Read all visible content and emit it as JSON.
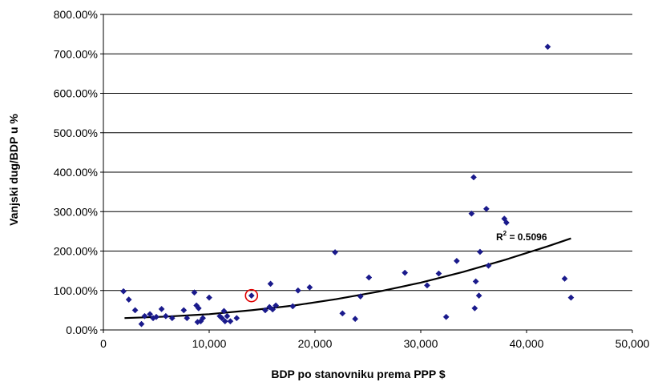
{
  "chart_data": {
    "type": "scatter",
    "xlabel": "BDP po stanovniku prema PPP $",
    "ylabel": "Vanjski dug/BDP u %",
    "xlim": [
      0,
      50000
    ],
    "ylim": [
      0,
      800
    ],
    "x_ticks": [
      0,
      10000,
      20000,
      30000,
      40000,
      50000
    ],
    "x_tick_labels": [
      "0",
      "10,000",
      "20,000",
      "30,000",
      "40,000",
      "50,000"
    ],
    "y_ticks": [
      0,
      100,
      200,
      300,
      400,
      500,
      600,
      700,
      800
    ],
    "y_tick_labels": [
      "0.00%",
      "100.00%",
      "200.00%",
      "300.00%",
      "400.00%",
      "500.00%",
      "600.00%",
      "700.00%",
      "800.00%"
    ],
    "grid": "horizontal",
    "marker_color": "#1a1a8c",
    "trendline_color": "#000000",
    "highlight_color": "#e00000",
    "annotation": {
      "r2_prefix": "R",
      "r2_sup": "2",
      "r2_value": " = 0.5096"
    },
    "highlighted_point": {
      "x": 14000,
      "y": 87
    },
    "trendline": [
      {
        "x": 2000,
        "y": 30
      },
      {
        "x": 6000,
        "y": 34
      },
      {
        "x": 10000,
        "y": 40
      },
      {
        "x": 14000,
        "y": 50
      },
      {
        "x": 18000,
        "y": 62
      },
      {
        "x": 22000,
        "y": 78
      },
      {
        "x": 26000,
        "y": 97
      },
      {
        "x": 30000,
        "y": 120
      },
      {
        "x": 34000,
        "y": 147
      },
      {
        "x": 38000,
        "y": 178
      },
      {
        "x": 42000,
        "y": 212
      },
      {
        "x": 44200,
        "y": 232
      }
    ],
    "points": [
      {
        "x": 1900,
        "y": 98
      },
      {
        "x": 2400,
        "y": 77
      },
      {
        "x": 3000,
        "y": 50
      },
      {
        "x": 3600,
        "y": 15
      },
      {
        "x": 3900,
        "y": 35
      },
      {
        "x": 4400,
        "y": 40
      },
      {
        "x": 4700,
        "y": 30
      },
      {
        "x": 5000,
        "y": 33
      },
      {
        "x": 5500,
        "y": 53
      },
      {
        "x": 5900,
        "y": 35
      },
      {
        "x": 6500,
        "y": 30
      },
      {
        "x": 7600,
        "y": 50
      },
      {
        "x": 7900,
        "y": 30
      },
      {
        "x": 8600,
        "y": 95
      },
      {
        "x": 8800,
        "y": 62
      },
      {
        "x": 8900,
        "y": 20
      },
      {
        "x": 9000,
        "y": 55
      },
      {
        "x": 9200,
        "y": 22
      },
      {
        "x": 9400,
        "y": 30
      },
      {
        "x": 10000,
        "y": 82
      },
      {
        "x": 11000,
        "y": 35
      },
      {
        "x": 11200,
        "y": 30
      },
      {
        "x": 11400,
        "y": 48
      },
      {
        "x": 11500,
        "y": 22
      },
      {
        "x": 11700,
        "y": 35
      },
      {
        "x": 12000,
        "y": 22
      },
      {
        "x": 12600,
        "y": 30
      },
      {
        "x": 14000,
        "y": 87
      },
      {
        "x": 15300,
        "y": 50
      },
      {
        "x": 15700,
        "y": 58
      },
      {
        "x": 15800,
        "y": 117
      },
      {
        "x": 16000,
        "y": 52
      },
      {
        "x": 16300,
        "y": 62
      },
      {
        "x": 17900,
        "y": 60
      },
      {
        "x": 18400,
        "y": 100
      },
      {
        "x": 19500,
        "y": 108
      },
      {
        "x": 21900,
        "y": 197
      },
      {
        "x": 22600,
        "y": 42
      },
      {
        "x": 23800,
        "y": 28
      },
      {
        "x": 24300,
        "y": 85
      },
      {
        "x": 25100,
        "y": 133
      },
      {
        "x": 28500,
        "y": 145
      },
      {
        "x": 30600,
        "y": 113
      },
      {
        "x": 31700,
        "y": 143
      },
      {
        "x": 32400,
        "y": 33
      },
      {
        "x": 33400,
        "y": 175
      },
      {
        "x": 34800,
        "y": 295
      },
      {
        "x": 35000,
        "y": 387
      },
      {
        "x": 35100,
        "y": 55
      },
      {
        "x": 35200,
        "y": 123
      },
      {
        "x": 35500,
        "y": 87
      },
      {
        "x": 35600,
        "y": 198
      },
      {
        "x": 36200,
        "y": 307
      },
      {
        "x": 36400,
        "y": 163
      },
      {
        "x": 37900,
        "y": 282
      },
      {
        "x": 38100,
        "y": 272
      },
      {
        "x": 42000,
        "y": 718
      },
      {
        "x": 43600,
        "y": 130
      },
      {
        "x": 44200,
        "y": 82
      }
    ]
  }
}
